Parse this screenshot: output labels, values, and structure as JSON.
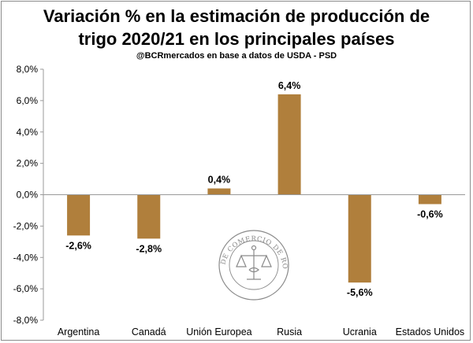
{
  "chart_data": {
    "type": "bar",
    "title_line1": "Variación % en la estimación de producción de",
    "title_line2": "trigo 2020/21 en los principales países",
    "subtitle": "@BCRmercados en base a datos de USDA - PSD",
    "categories": [
      "Argentina",
      "Canadá",
      "Unión Europea",
      "Rusia",
      "Ucrania",
      "Estados Unidos"
    ],
    "values": [
      -2.6,
      -2.8,
      0.4,
      6.4,
      -5.6,
      -0.6
    ],
    "data_labels": [
      "-2,6%",
      "-2,8%",
      "0,4%",
      "6,4%",
      "-5,6%",
      "-0,6%"
    ],
    "ylim": [
      -8,
      8
    ],
    "yticks": [
      8,
      6,
      4,
      2,
      0,
      -2,
      -4,
      -6,
      -8
    ],
    "ytick_labels": [
      "8,0%",
      "6,0%",
      "4,0%",
      "2,0%",
      "0,0%",
      "-2,0%",
      "-4,0%",
      "-6,0%",
      "-8,0%"
    ],
    "xlabel": "",
    "ylabel": "",
    "bar_color": "#b07f3c",
    "gridlines": false
  },
  "watermark": {
    "text": "BOLSA DE COMERCIO DE ROSARIO",
    "color": "#8a8a8a"
  }
}
